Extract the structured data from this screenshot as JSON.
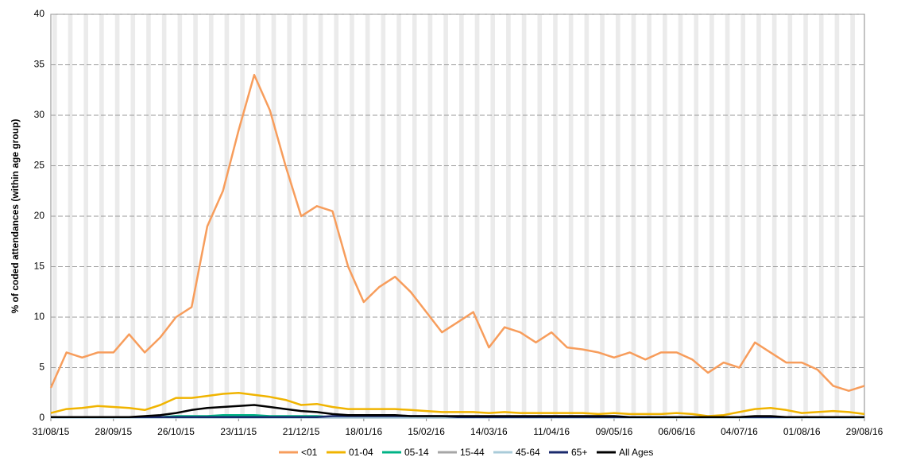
{
  "chart_data": {
    "type": "line",
    "y_label": "% of coded attendances (within age group)",
    "x": [
      "31/08/15",
      "07/09/15",
      "14/09/15",
      "21/09/15",
      "28/09/15",
      "05/10/15",
      "12/10/15",
      "19/10/15",
      "26/10/15",
      "02/11/15",
      "09/11/15",
      "16/11/15",
      "23/11/15",
      "30/11/15",
      "07/12/15",
      "14/12/15",
      "21/12/15",
      "28/12/15",
      "04/01/16",
      "11/01/16",
      "18/01/16",
      "25/01/16",
      "01/02/16",
      "08/02/16",
      "15/02/16",
      "22/02/16",
      "29/02/16",
      "07/03/16",
      "14/03/16",
      "21/03/16",
      "28/03/16",
      "04/04/16",
      "11/04/16",
      "18/04/16",
      "25/04/16",
      "02/05/16",
      "09/05/16",
      "16/05/16",
      "23/05/16",
      "30/05/16",
      "06/06/16",
      "13/06/16",
      "20/06/16",
      "27/06/16",
      "04/07/16",
      "11/07/16",
      "18/07/16",
      "25/07/16",
      "01/08/16",
      "08/08/16",
      "15/08/16",
      "22/08/16",
      "29/08/16"
    ],
    "xlim": [
      "31/08/15",
      "29/08/16"
    ],
    "xticks": [
      "31/08/15",
      "28/09/15",
      "26/10/15",
      "23/11/15",
      "21/12/15",
      "18/01/16",
      "15/02/16",
      "14/03/16",
      "11/04/16",
      "09/05/16",
      "06/06/16",
      "04/07/16",
      "01/08/16",
      "29/08/16"
    ],
    "ylim": [
      0,
      40
    ],
    "yticks": [
      0,
      5,
      10,
      15,
      20,
      25,
      30,
      35,
      40
    ],
    "grid": true,
    "legend": "bottom",
    "series": [
      {
        "name": "<01",
        "color": "#f79d5c",
        "values": [
          3.0,
          6.5,
          6.0,
          6.5,
          6.5,
          8.3,
          6.5,
          8.0,
          10.0,
          11.0,
          19.0,
          22.5,
          28.5,
          34.0,
          30.5,
          25.0,
          20.0,
          21.0,
          20.5,
          15.0,
          11.5,
          13.0,
          14.0,
          12.5,
          10.5,
          8.5,
          9.5,
          10.5,
          7.0,
          9.0,
          8.5,
          7.5,
          8.5,
          7.0,
          6.8,
          6.5,
          6.0,
          6.5,
          5.8,
          6.5,
          6.5,
          5.8,
          4.5,
          5.5,
          5.0,
          7.5,
          6.5,
          5.5,
          5.5,
          4.8,
          3.2,
          2.7,
          3.2
        ]
      },
      {
        "name": "01-04",
        "color": "#f0b400",
        "values": [
          0.5,
          0.9,
          1.0,
          1.2,
          1.1,
          1.0,
          0.8,
          1.3,
          2.0,
          2.0,
          2.2,
          2.4,
          2.5,
          2.3,
          2.1,
          1.8,
          1.3,
          1.4,
          1.1,
          0.9,
          0.9,
          0.9,
          0.9,
          0.8,
          0.7,
          0.6,
          0.6,
          0.6,
          0.5,
          0.6,
          0.5,
          0.5,
          0.5,
          0.5,
          0.5,
          0.4,
          0.5,
          0.4,
          0.4,
          0.4,
          0.5,
          0.4,
          0.2,
          0.3,
          0.6,
          0.9,
          1.0,
          0.8,
          0.5,
          0.6,
          0.7,
          0.6,
          0.4
        ]
      },
      {
        "name": "05-14",
        "color": "#00b386",
        "values": [
          0.1,
          0.1,
          0.1,
          0.1,
          0.1,
          0.1,
          0.1,
          0.1,
          0.2,
          0.2,
          0.2,
          0.3,
          0.3,
          0.3,
          0.2,
          0.2,
          0.2,
          0.2,
          0.1,
          0.1,
          0.1,
          0.1,
          0.1,
          0.1,
          0.1,
          0.1,
          0.1,
          0.1,
          0.1,
          0.1,
          0.1,
          0.1,
          0.1,
          0.1,
          0.1,
          0.1,
          0.1,
          0.1,
          0.1,
          0.1,
          0.1,
          0.1,
          0.1,
          0.1,
          0.1,
          0.1,
          0.1,
          0.1,
          0.1,
          0.1,
          0.1,
          0.1,
          0.1
        ]
      },
      {
        "name": "15-44",
        "color": "#a6a6a6",
        "values": [
          0.05,
          0.05,
          0.05,
          0.05,
          0.05,
          0.05,
          0.05,
          0.05,
          0.05,
          0.05,
          0.05,
          0.05,
          0.05,
          0.05,
          0.05,
          0.05,
          0.05,
          0.05,
          0.05,
          0.05,
          0.05,
          0.05,
          0.05,
          0.05,
          0.05,
          0.05,
          0.05,
          0.05,
          0.05,
          0.05,
          0.05,
          0.05,
          0.05,
          0.05,
          0.05,
          0.05,
          0.05,
          0.05,
          0.05,
          0.05,
          0.05,
          0.05,
          0.05,
          0.05,
          0.05,
          0.05,
          0.05,
          0.05,
          0.05,
          0.05,
          0.05,
          0.05,
          0.05
        ]
      },
      {
        "name": "45-64",
        "color": "#a9cbd9",
        "values": [
          0.05,
          0.05,
          0.05,
          0.05,
          0.05,
          0.05,
          0.05,
          0.05,
          0.05,
          0.05,
          0.05,
          0.05,
          0.05,
          0.05,
          0.05,
          0.05,
          0.05,
          0.05,
          0.05,
          0.05,
          0.05,
          0.05,
          0.05,
          0.05,
          0.05,
          0.05,
          0.05,
          0.05,
          0.05,
          0.05,
          0.05,
          0.05,
          0.05,
          0.05,
          0.05,
          0.05,
          0.05,
          0.05,
          0.05,
          0.05,
          0.05,
          0.05,
          0.05,
          0.05,
          0.05,
          0.05,
          0.05,
          0.05,
          0.05,
          0.05,
          0.05,
          0.05,
          0.05
        ]
      },
      {
        "name": "65+",
        "color": "#1a2a6c",
        "values": [
          0.1,
          0.1,
          0.1,
          0.1,
          0.1,
          0.1,
          0.1,
          0.1,
          0.1,
          0.1,
          0.1,
          0.1,
          0.1,
          0.1,
          0.1,
          0.1,
          0.1,
          0.1,
          0.2,
          0.2,
          0.2,
          0.2,
          0.2,
          0.2,
          0.2,
          0.2,
          0.1,
          0.1,
          0.1,
          0.1,
          0.1,
          0.1,
          0.1,
          0.1,
          0.1,
          0.1,
          0.1,
          0.1,
          0.1,
          0.1,
          0.1,
          0.1,
          0.1,
          0.1,
          0.1,
          0.1,
          0.1,
          0.1,
          0.1,
          0.1,
          0.1,
          0.1,
          0.1
        ]
      },
      {
        "name": "All Ages",
        "color": "#000000",
        "values": [
          0.1,
          0.1,
          0.1,
          0.1,
          0.1,
          0.1,
          0.2,
          0.3,
          0.5,
          0.8,
          1.0,
          1.1,
          1.2,
          1.3,
          1.1,
          0.9,
          0.7,
          0.6,
          0.4,
          0.3,
          0.3,
          0.3,
          0.3,
          0.2,
          0.2,
          0.2,
          0.2,
          0.2,
          0.2,
          0.2,
          0.2,
          0.2,
          0.2,
          0.2,
          0.2,
          0.2,
          0.2,
          0.1,
          0.1,
          0.1,
          0.1,
          0.1,
          0.1,
          0.1,
          0.1,
          0.2,
          0.2,
          0.1,
          0.1,
          0.1,
          0.1,
          0.1,
          0.1
        ]
      }
    ]
  }
}
